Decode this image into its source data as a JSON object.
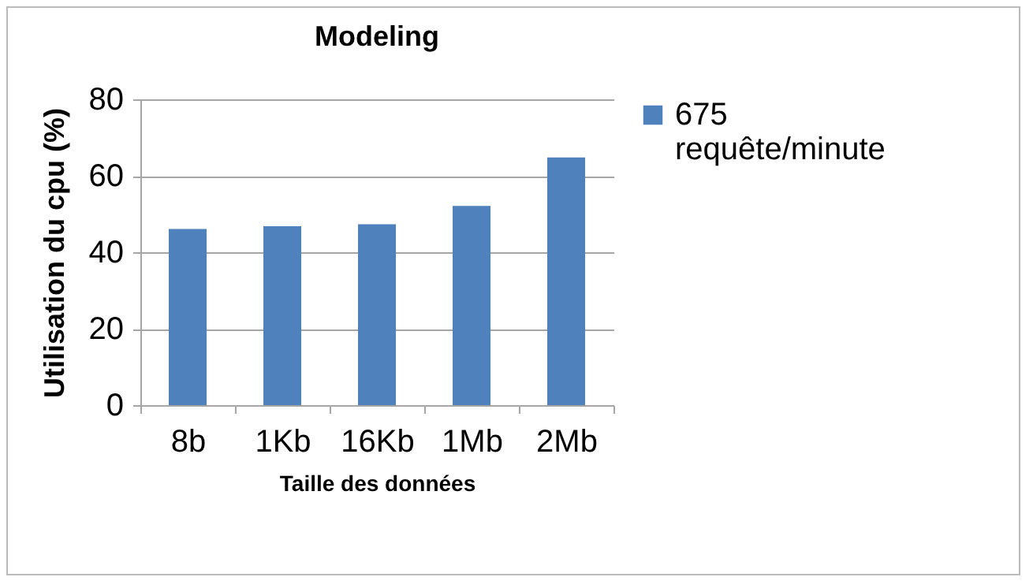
{
  "chart_data": {
    "type": "bar",
    "title": "Modeling",
    "xlabel": "Taille des données",
    "ylabel": "Utilisation du cpu (%)",
    "categories": [
      "8b",
      "1Kb",
      "16Kb",
      "1Mb",
      "2Mb"
    ],
    "series": [
      {
        "name": "675 requête/minute",
        "color": "#4f81bd",
        "values": [
          46.1,
          46.8,
          47.3,
          52.1,
          64.8
        ]
      }
    ],
    "ylim": [
      0,
      80
    ],
    "yticks": [
      0,
      20,
      40,
      60,
      80
    ],
    "grid": "y",
    "legend": "right"
  }
}
